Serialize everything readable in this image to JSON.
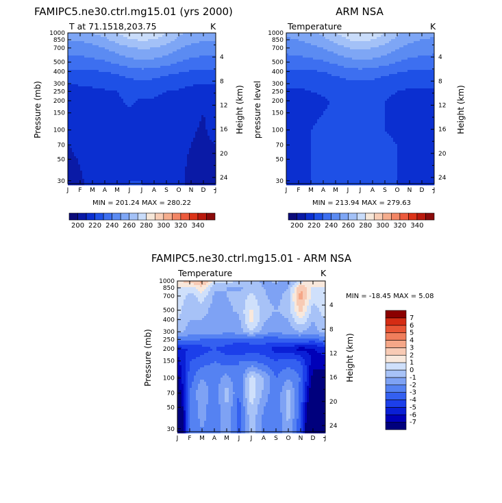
{
  "figure": {
    "panel_left": {
      "title": "FAMIPC5.ne30.ctrl.mg15.01 (yrs 2000)",
      "subtitle": "T at 71.1518,203.75",
      "units": "K",
      "ylabel": "Pressure (mb)",
      "y2label": "Height (km)",
      "minmax": "MIN = 201.24  MAX = 280.22"
    },
    "panel_right": {
      "title": "ARM NSA",
      "subtitle": "Temperature",
      "units": "K",
      "ylabel": "pressure level",
      "y2label": "Height (km)",
      "minmax": "MIN = 213.94  MAX = 279.63"
    },
    "panel_diff": {
      "title": "FAMIPC5.ne30.ctrl.mg15.01 - ARM NSA",
      "subtitle": "Temperature",
      "units": "K",
      "ylabel": "Pressure (mb)",
      "y2label": "Height (km)",
      "minmax": "MIN = -18.45 MAX =    5.08"
    }
  },
  "chart_data": [
    {
      "type": "heatmap",
      "id": "model",
      "title": "FAMIPC5.ne30.ctrl.mg15.01 (yrs 2000)",
      "subtitle": "T at 71.1518,203.75",
      "x": [
        "J",
        "F",
        "M",
        "A",
        "M",
        "J",
        "J",
        "A",
        "S",
        "O",
        "N",
        "D",
        "J"
      ],
      "y_pressure": [
        1000,
        850,
        700,
        500,
        400,
        300,
        250,
        200,
        150,
        100,
        70,
        50,
        30
      ],
      "y_ticklabels": [
        "30",
        "50",
        "70",
        "100",
        "150",
        "200",
        "250",
        "300",
        "400",
        "500",
        "700",
        "850",
        "1000"
      ],
      "y2_height_km": [
        4,
        8,
        12,
        16,
        20,
        24
      ],
      "y2_ticklabels": [
        "4",
        "8",
        "12",
        "16",
        "20",
        "24"
      ],
      "ylabel": "Pressure (mb)",
      "y2label": "Height (km)",
      "values": [
        [
          254,
          255,
          260,
          264,
          270,
          276,
          279,
          277,
          270,
          262,
          257,
          255,
          254
        ],
        [
          251,
          251,
          254,
          258,
          264,
          269,
          271,
          270,
          265,
          258,
          253,
          251,
          251
        ],
        [
          245,
          245,
          247,
          250,
          255,
          259,
          261,
          260,
          256,
          251,
          247,
          245,
          245
        ],
        [
          236,
          236,
          237,
          239,
          242,
          246,
          248,
          247,
          244,
          240,
          237,
          236,
          236
        ],
        [
          228,
          228,
          229,
          230,
          232,
          235,
          237,
          236,
          233,
          231,
          229,
          228,
          228
        ],
        [
          220,
          221,
          222,
          223,
          224,
          226,
          228,
          226,
          224,
          223,
          221,
          220,
          220
        ],
        [
          216,
          217,
          218,
          219,
          220,
          222,
          224,
          222,
          220,
          219,
          217,
          216,
          216
        ],
        [
          212,
          214,
          215,
          216,
          219,
          221,
          219,
          219,
          218,
          215,
          212,
          210,
          212
        ],
        [
          213,
          215,
          216,
          217,
          218,
          219,
          219,
          218,
          217,
          214,
          212,
          210,
          213
        ],
        [
          213,
          215,
          217,
          218,
          218,
          219,
          219,
          218,
          217,
          214,
          211,
          209,
          213
        ],
        [
          210,
          213,
          216,
          218,
          219,
          219,
          219,
          218,
          217,
          215,
          210,
          208,
          210
        ],
        [
          207,
          211,
          216,
          218,
          219,
          219,
          219,
          219,
          217,
          214,
          208,
          205,
          207
        ],
        [
          204,
          208,
          215,
          218,
          219,
          220,
          220,
          219,
          217,
          213,
          206,
          203,
          204
        ]
      ],
      "min": 201.24,
      "max": 280.22
    },
    {
      "type": "heatmap",
      "id": "obs",
      "title": "ARM NSA",
      "subtitle": "Temperature",
      "x": [
        "J",
        "F",
        "M",
        "A",
        "M",
        "J",
        "J",
        "A",
        "S",
        "O",
        "N",
        "D",
        "J"
      ],
      "y_pressure": [
        1000,
        850,
        700,
        500,
        400,
        300,
        250,
        200,
        150,
        100,
        70,
        50,
        30
      ],
      "ylabel": "pressure level",
      "y2label": "Height (km)",
      "values": [
        [
          252,
          253,
          257,
          263,
          270,
          276,
          279,
          277,
          270,
          262,
          256,
          253,
          252
        ],
        [
          249,
          250,
          253,
          257,
          264,
          270,
          272,
          270,
          264,
          257,
          252,
          250,
          249
        ],
        [
          244,
          245,
          247,
          250,
          255,
          260,
          262,
          260,
          256,
          251,
          247,
          245,
          244
        ],
        [
          235,
          236,
          237,
          239,
          242,
          246,
          248,
          247,
          244,
          240,
          237,
          236,
          235
        ],
        [
          228,
          228,
          229,
          230,
          233,
          236,
          237,
          236,
          233,
          231,
          229,
          228,
          228
        ],
        [
          221,
          221,
          222,
          223,
          225,
          227,
          228,
          227,
          225,
          223,
          222,
          221,
          221
        ],
        [
          219,
          219,
          220,
          221,
          222,
          224,
          225,
          224,
          222,
          220,
          219,
          219,
          219
        ],
        [
          215,
          217,
          218,
          219,
          221,
          223,
          222,
          220,
          220,
          218,
          216,
          214,
          215
        ],
        [
          217,
          218,
          219,
          220,
          221,
          222,
          222,
          221,
          220,
          219,
          218,
          216,
          217
        ],
        [
          218,
          219,
          220,
          221,
          221,
          222,
          222,
          221,
          220,
          219,
          218,
          217,
          218
        ],
        [
          218,
          219,
          220,
          221,
          221,
          222,
          222,
          222,
          221,
          220,
          219,
          218,
          218
        ],
        [
          218,
          219,
          220,
          221,
          222,
          222,
          222,
          222,
          221,
          220,
          219,
          218,
          218
        ],
        [
          217,
          219,
          220,
          221,
          222,
          222,
          223,
          222,
          221,
          220,
          219,
          217,
          217
        ]
      ],
      "min": 213.94,
      "max": 279.63
    },
    {
      "type": "heatmap",
      "id": "diff",
      "title": "FAMIPC5.ne30.ctrl.mg15.01 - ARM NSA",
      "subtitle": "Temperature",
      "x": [
        "J",
        "F",
        "M",
        "A",
        "M",
        "J",
        "J",
        "A",
        "S",
        "O",
        "N",
        "D",
        "J"
      ],
      "y_pressure": [
        1000,
        850,
        700,
        500,
        400,
        300,
        250,
        200,
        150,
        100,
        70,
        50,
        30
      ],
      "ylabel": "Pressure (mb)",
      "y2label": "Height (km)",
      "values": [
        [
          2.0,
          2.5,
          3.5,
          0.5,
          0.8,
          -0.3,
          -0.8,
          -1.2,
          -0.8,
          -1.5,
          0.5,
          2.0,
          2.0
        ],
        [
          1.0,
          0.5,
          1.8,
          -0.8,
          -1.0,
          -1.2,
          -0.5,
          -1.0,
          -1.5,
          -1.0,
          3.0,
          0.8,
          1.0
        ],
        [
          1.0,
          -0.5,
          0.6,
          -1.2,
          -1.0,
          -0.8,
          0.3,
          -0.8,
          -1.5,
          -0.5,
          3.5,
          0.5,
          1.0
        ],
        [
          0.5,
          -1.0,
          -0.5,
          -1.5,
          -1.2,
          -0.8,
          1.2,
          -0.5,
          -1.0,
          -0.5,
          2.5,
          -0.5,
          0.5
        ],
        [
          0.0,
          -1.0,
          -1.0,
          -1.5,
          -1.5,
          -1.2,
          1.5,
          -0.8,
          -1.5,
          -1.0,
          1.0,
          -1.0,
          0.0
        ],
        [
          -0.5,
          -1.5,
          -1.5,
          -1.5,
          -1.8,
          -1.5,
          0.0,
          -1.5,
          -1.8,
          -1.5,
          -1.0,
          -1.5,
          -0.5
        ],
        [
          -2.5,
          -2.8,
          -3.0,
          -3.0,
          -3.2,
          -3.5,
          -3.5,
          -3.5,
          -3.5,
          -3.0,
          -3.0,
          -3.5,
          -2.5
        ],
        [
          -5.5,
          -5.0,
          -4.5,
          -4.0,
          -4.5,
          -5.0,
          -4.5,
          -4.5,
          -5.5,
          -5.5,
          -6.5,
          -6.0,
          -5.5
        ],
        [
          -6.5,
          -4.0,
          -3.5,
          -3.0,
          -3.5,
          -3.0,
          -3.0,
          -3.5,
          -4.0,
          -3.5,
          -4.0,
          -6.5,
          -6.5
        ],
        [
          -7.5,
          -3.5,
          -2.0,
          -2.5,
          -1.5,
          -3.0,
          0.5,
          -1.0,
          -3.0,
          -2.0,
          -3.0,
          -7.5,
          -7.5
        ],
        [
          -8.5,
          -3.0,
          -1.0,
          -2.8,
          -0.5,
          -3.0,
          0.8,
          -1.2,
          -3.0,
          -0.5,
          -3.5,
          -8.5,
          -8.5
        ],
        [
          -10.0,
          -3.0,
          -1.5,
          -2.8,
          -1.0,
          -3.5,
          0.0,
          -2.0,
          -3.0,
          -0.5,
          -3.5,
          -10.0,
          -10.0
        ],
        [
          -12.0,
          -2.5,
          -2.0,
          -2.5,
          -1.5,
          -3.5,
          -0.5,
          -2.5,
          -3.0,
          -1.0,
          -4.0,
          -12.0,
          -12.0
        ]
      ],
      "min": -18.45,
      "max": 5.08
    }
  ],
  "colorbars": {
    "temperature": {
      "levels": [
        200,
        220,
        240,
        260,
        280,
        300,
        320,
        340
      ],
      "labels": [
        "200",
        "220",
        "240",
        "260",
        "280",
        "300",
        "320",
        "340"
      ],
      "colors": [
        "#0c0c7a",
        "#0a1aa6",
        "#0b2fd0",
        "#1e50e6",
        "#3d6ff0",
        "#5b8bf2",
        "#7ea6f5",
        "#a3c1f7",
        "#c9dcfa",
        "#f6e7d9",
        "#f8cdb5",
        "#f5ad8d",
        "#f28665",
        "#ec5a3c",
        "#dc3318",
        "#ba190d",
        "#8a0a0a"
      ]
    },
    "difference": {
      "levels": [
        -7,
        -6,
        -5,
        -4,
        -3,
        -2,
        -1,
        0,
        1,
        2,
        3,
        4,
        5,
        6,
        7
      ],
      "labels": [
        "-7",
        "-6",
        "-5",
        "-4",
        "-3",
        "-2",
        "-1",
        "0",
        "1",
        "2",
        "3",
        "4",
        "5",
        "6",
        "7"
      ],
      "colors": [
        "#00007d",
        "#0000b8",
        "#0a1fd6",
        "#1c3fea",
        "#3460f0",
        "#5582f2",
        "#7ea2f4",
        "#a7c2f7",
        "#cfe0fb",
        "#f8e8dc",
        "#f8cbb5",
        "#f5a788",
        "#f07e5c",
        "#e85535",
        "#d52c14",
        "#8b0000"
      ]
    }
  }
}
